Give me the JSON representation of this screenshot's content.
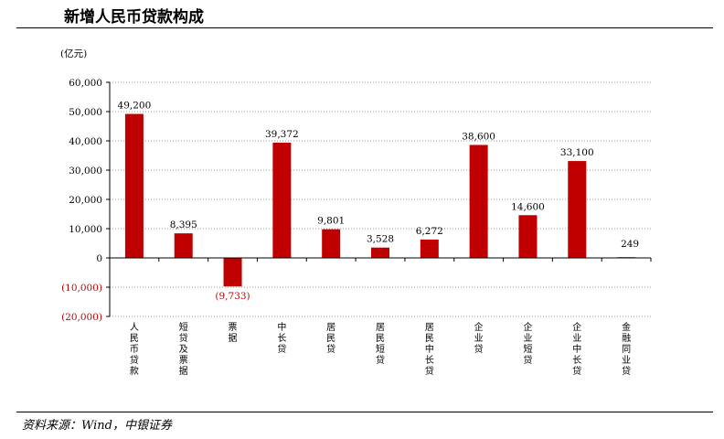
{
  "header": {
    "title": "新增人民币贷款构成"
  },
  "footer": {
    "source": "资料来源：Wind，中银证券"
  },
  "chart_data": {
    "type": "bar",
    "title": "",
    "ylabel": "(亿元)",
    "xlabel": "",
    "ylim": [
      -20000,
      60000
    ],
    "yticks": [
      60000,
      50000,
      40000,
      30000,
      20000,
      10000,
      0,
      -10000,
      -20000
    ],
    "ytick_labels": [
      "60,000",
      "50,000",
      "40,000",
      "30,000",
      "20,000",
      "10,000",
      "0",
      "(10,000)",
      "(20,000)"
    ],
    "grid": true,
    "categories": [
      "人民币贷款",
      "短贷及票据",
      "票据",
      "中长贷",
      "居民贷",
      "居民短贷",
      "居民中长贷",
      "企业贷",
      "企业短贷",
      "企业中长贷",
      "金融同业贷"
    ],
    "values": [
      49200,
      8395,
      -9733,
      39372,
      9801,
      3528,
      6272,
      38600,
      14600,
      33100,
      249
    ],
    "value_labels": [
      "49,200",
      "8,395",
      "(9,733)",
      "39,372",
      "9,801",
      "3,528",
      "6,272",
      "38,600",
      "14,600",
      "33,100",
      "249"
    ],
    "colors": {
      "bar": "#c00000",
      "negative_label": "#c00000",
      "grid": "#999999"
    }
  }
}
